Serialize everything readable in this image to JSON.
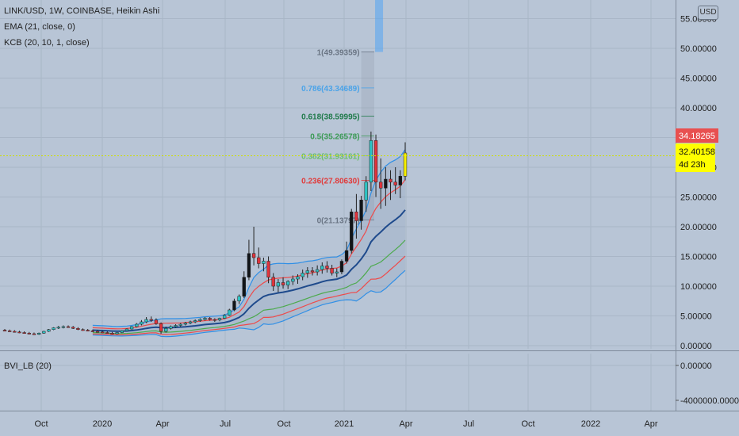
{
  "legend": {
    "symbol": "LINK/USD, 1W, COINBASE, Heikin Ashi",
    "ema": "EMA (21, close, 0)",
    "kcb": "KCB (20, 10, 1, close)",
    "indicator": "BVI_LB (20)"
  },
  "currency_button": "USD",
  "price_labels": {
    "high": "34.18265",
    "current": "32.40158",
    "countdown": "4d 23h"
  },
  "colors": {
    "background": "#b8c5d6",
    "grid": "#a9b6c7",
    "bull": "#2ec4c4",
    "bear": "#e0343c",
    "ema": "#1e4a8c",
    "upper_band": "#2f8fe6",
    "red_band": "#ee4a4a",
    "green_band": "#4caa4c",
    "high_label": "#e85050",
    "current_label": "#ffff00",
    "dash_line": "#cfe000"
  },
  "chart_data": {
    "type": "candlestick",
    "title": "LINK/USD, 1W, COINBASE, Heikin Ashi",
    "y_axis": {
      "ticks": [
        "0.00000",
        "5.00000",
        "10.00000",
        "15.00000",
        "20.00000",
        "25.00000",
        "30.00000",
        "35.00000",
        "40.00000",
        "45.00000",
        "50.00000",
        "55.00000"
      ],
      "range": [
        -1,
        57
      ]
    },
    "x_axis": {
      "ticks": [
        "Oct",
        "2020",
        "Apr",
        "Jul",
        "Oct",
        "2021",
        "Apr",
        "Jul",
        "Oct",
        "2022",
        "Apr"
      ]
    },
    "fibonacci": [
      {
        "label": "1(49.39359)",
        "value": 49.39359,
        "color": "#6a7584"
      },
      {
        "label": "0.786(43.34689)",
        "value": 43.34689,
        "color": "#4aa3e8"
      },
      {
        "label": "0.618(38.59995)",
        "value": 38.59995,
        "color": "#1f7a4a"
      },
      {
        "label": "0.5(35.26578)",
        "value": 35.26578,
        "color": "#3b9a55"
      },
      {
        "label": "0.382(31.93161)",
        "value": 31.93161,
        "color": "#6bbf6b"
      },
      {
        "label": "0.236(27.80630)",
        "value": 27.8063,
        "color": "#e03c3c"
      },
      {
        "label": "0(21.13797)",
        "value": 21.13797,
        "color": "#6a7584"
      }
    ],
    "candles": [
      {
        "o": 2.6,
        "h": 2.8,
        "l": 2.4,
        "c": 2.5
      },
      {
        "o": 2.5,
        "h": 2.7,
        "l": 2.3,
        "c": 2.4
      },
      {
        "o": 2.4,
        "h": 2.6,
        "l": 2.2,
        "c": 2.3
      },
      {
        "o": 2.3,
        "h": 2.5,
        "l": 2.1,
        "c": 2.2
      },
      {
        "o": 2.2,
        "h": 2.4,
        "l": 2.0,
        "c": 2.1
      },
      {
        "o": 2.1,
        "h": 2.3,
        "l": 1.9,
        "c": 2.0
      },
      {
        "o": 2.0,
        "h": 2.2,
        "l": 1.8,
        "c": 1.9
      },
      {
        "o": 1.9,
        "h": 2.2,
        "l": 1.8,
        "c": 2.1
      },
      {
        "o": 2.1,
        "h": 2.5,
        "l": 2.0,
        "c": 2.4
      },
      {
        "o": 2.4,
        "h": 2.8,
        "l": 2.3,
        "c": 2.7
      },
      {
        "o": 2.7,
        "h": 3.1,
        "l": 2.6,
        "c": 3.0
      },
      {
        "o": 3.0,
        "h": 3.3,
        "l": 2.8,
        "c": 3.1
      },
      {
        "o": 3.1,
        "h": 3.4,
        "l": 2.9,
        "c": 3.2
      },
      {
        "o": 3.2,
        "h": 3.4,
        "l": 3.0,
        "c": 3.1
      },
      {
        "o": 3.1,
        "h": 3.3,
        "l": 2.8,
        "c": 2.9
      },
      {
        "o": 2.9,
        "h": 3.1,
        "l": 2.6,
        "c": 2.7
      },
      {
        "o": 2.7,
        "h": 2.9,
        "l": 2.5,
        "c": 2.6
      },
      {
        "o": 2.6,
        "h": 2.8,
        "l": 2.4,
        "c": 2.5
      },
      {
        "o": 2.5,
        "h": 2.7,
        "l": 2.3,
        "c": 2.4
      },
      {
        "o": 2.4,
        "h": 2.6,
        "l": 2.2,
        "c": 2.3
      },
      {
        "o": 2.3,
        "h": 2.5,
        "l": 2.1,
        "c": 2.2
      },
      {
        "o": 2.2,
        "h": 2.4,
        "l": 2.0,
        "c": 2.1
      },
      {
        "o": 2.1,
        "h": 2.3,
        "l": 1.9,
        "c": 2.0
      },
      {
        "o": 2.0,
        "h": 2.3,
        "l": 1.9,
        "c": 2.2
      },
      {
        "o": 2.2,
        "h": 2.6,
        "l": 2.1,
        "c": 2.5
      },
      {
        "o": 2.5,
        "h": 2.9,
        "l": 2.4,
        "c": 2.8
      },
      {
        "o": 2.8,
        "h": 3.3,
        "l": 2.7,
        "c": 3.2
      },
      {
        "o": 3.2,
        "h": 3.8,
        "l": 3.1,
        "c": 3.6
      },
      {
        "o": 3.6,
        "h": 4.3,
        "l": 3.4,
        "c": 4.0
      },
      {
        "o": 4.0,
        "h": 4.8,
        "l": 3.8,
        "c": 4.4
      },
      {
        "o": 4.4,
        "h": 4.9,
        "l": 4.0,
        "c": 4.3
      },
      {
        "o": 4.3,
        "h": 4.6,
        "l": 3.5,
        "c": 3.7
      },
      {
        "o": 3.7,
        "h": 3.9,
        "l": 2.0,
        "c": 2.4
      },
      {
        "o": 2.4,
        "h": 3.2,
        "l": 2.2,
        "c": 2.9
      },
      {
        "o": 2.9,
        "h": 3.4,
        "l": 2.7,
        "c": 3.2
      },
      {
        "o": 3.2,
        "h": 3.6,
        "l": 3.0,
        "c": 3.4
      },
      {
        "o": 3.4,
        "h": 3.8,
        "l": 3.2,
        "c": 3.6
      },
      {
        "o": 3.6,
        "h": 4.0,
        "l": 3.4,
        "c": 3.8
      },
      {
        "o": 3.8,
        "h": 4.2,
        "l": 3.6,
        "c": 4.0
      },
      {
        "o": 4.0,
        "h": 4.4,
        "l": 3.8,
        "c": 4.2
      },
      {
        "o": 4.2,
        "h": 4.6,
        "l": 4.0,
        "c": 4.4
      },
      {
        "o": 4.4,
        "h": 4.8,
        "l": 4.2,
        "c": 4.6
      },
      {
        "o": 4.6,
        "h": 4.8,
        "l": 4.2,
        "c": 4.4
      },
      {
        "o": 4.4,
        "h": 4.6,
        "l": 4.0,
        "c": 4.3
      },
      {
        "o": 4.3,
        "h": 4.7,
        "l": 4.1,
        "c": 4.6
      },
      {
        "o": 4.6,
        "h": 5.3,
        "l": 4.5,
        "c": 5.1
      },
      {
        "o": 5.1,
        "h": 6.2,
        "l": 5.0,
        "c": 6.0
      },
      {
        "o": 6.0,
        "h": 7.9,
        "l": 5.8,
        "c": 7.5
      },
      {
        "o": 7.5,
        "h": 8.6,
        "l": 7.0,
        "c": 8.3
      },
      {
        "o": 8.3,
        "h": 12.5,
        "l": 8.0,
        "c": 11.5
      },
      {
        "o": 11.5,
        "h": 17.8,
        "l": 11.0,
        "c": 15.5
      },
      {
        "o": 15.5,
        "h": 20.0,
        "l": 13.5,
        "c": 14.8
      },
      {
        "o": 14.8,
        "h": 16.5,
        "l": 13.0,
        "c": 13.8
      },
      {
        "o": 13.8,
        "h": 14.8,
        "l": 12.5,
        "c": 14.2
      },
      {
        "o": 14.2,
        "h": 15.0,
        "l": 10.5,
        "c": 11.5
      },
      {
        "o": 11.5,
        "h": 12.2,
        "l": 9.2,
        "c": 10.0
      },
      {
        "o": 10.0,
        "h": 11.2,
        "l": 9.0,
        "c": 10.6
      },
      {
        "o": 10.6,
        "h": 11.5,
        "l": 9.6,
        "c": 10.2
      },
      {
        "o": 10.2,
        "h": 11.0,
        "l": 9.5,
        "c": 10.8
      },
      {
        "o": 10.8,
        "h": 11.8,
        "l": 10.2,
        "c": 11.2
      },
      {
        "o": 11.2,
        "h": 12.0,
        "l": 10.4,
        "c": 11.6
      },
      {
        "o": 11.6,
        "h": 12.8,
        "l": 11.0,
        "c": 12.2
      },
      {
        "o": 12.2,
        "h": 13.2,
        "l": 11.4,
        "c": 12.6
      },
      {
        "o": 12.6,
        "h": 13.2,
        "l": 11.8,
        "c": 12.4
      },
      {
        "o": 12.4,
        "h": 13.5,
        "l": 11.8,
        "c": 12.8
      },
      {
        "o": 12.8,
        "h": 14.0,
        "l": 12.1,
        "c": 13.4
      },
      {
        "o": 13.4,
        "h": 14.2,
        "l": 12.3,
        "c": 13.0
      },
      {
        "o": 13.0,
        "h": 13.6,
        "l": 11.8,
        "c": 12.2
      },
      {
        "o": 12.2,
        "h": 13.0,
        "l": 11.5,
        "c": 12.4
      },
      {
        "o": 12.4,
        "h": 14.5,
        "l": 12.0,
        "c": 14.2
      },
      {
        "o": 14.2,
        "h": 17.5,
        "l": 13.8,
        "c": 16.0
      },
      {
        "o": 16.0,
        "h": 23.0,
        "l": 15.5,
        "c": 22.5
      },
      {
        "o": 22.5,
        "h": 25.5,
        "l": 18.0,
        "c": 21.0
      },
      {
        "o": 21.0,
        "h": 25.2,
        "l": 19.5,
        "c": 24.5
      },
      {
        "o": 24.5,
        "h": 28.5,
        "l": 22.5,
        "c": 27.5
      },
      {
        "o": 27.5,
        "h": 36.0,
        "l": 26.0,
        "c": 34.5
      },
      {
        "o": 34.5,
        "h": 35.5,
        "l": 25.0,
        "c": 27.5
      },
      {
        "o": 27.5,
        "h": 31.5,
        "l": 23.0,
        "c": 26.5
      },
      {
        "o": 26.5,
        "h": 30.0,
        "l": 23.5,
        "c": 28.0
      },
      {
        "o": 28.0,
        "h": 29.5,
        "l": 24.5,
        "c": 27.5
      },
      {
        "o": 27.5,
        "h": 30.0,
        "l": 25.5,
        "c": 27.0
      },
      {
        "o": 27.0,
        "h": 29.5,
        "l": 24.8,
        "c": 28.5
      },
      {
        "o": 28.5,
        "h": 34.2,
        "l": 27.8,
        "c": 32.4
      }
    ]
  }
}
